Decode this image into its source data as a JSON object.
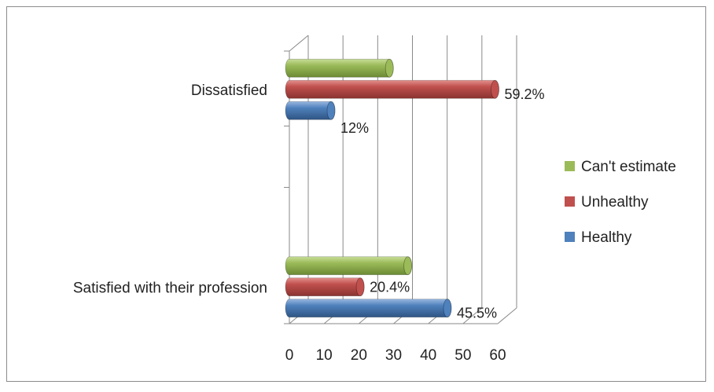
{
  "chart_data": {
    "type": "bar",
    "orientation": "horizontal",
    "style": "3d-cylinder",
    "categories": [
      "Satisfied with their profession",
      "Dissatisfied"
    ],
    "series": [
      {
        "name": "Healthy",
        "color": "#4f81bd",
        "values": [
          45.5,
          12
        ],
        "labels": [
          "45.5%",
          "12%"
        ]
      },
      {
        "name": "Unhealthy",
        "color": "#c0504d",
        "values": [
          20.4,
          59.2
        ],
        "labels": [
          "20.4%",
          "59.2%"
        ]
      },
      {
        "name": "Can't estimate",
        "color": "#9bbb59",
        "values": [
          34.1,
          28.8
        ],
        "labels": [
          "",
          ""
        ]
      }
    ],
    "xlim": [
      0,
      60
    ],
    "xticks": [
      0,
      10,
      20,
      30,
      40,
      50,
      60
    ],
    "grid": true,
    "legend_position": "right"
  }
}
